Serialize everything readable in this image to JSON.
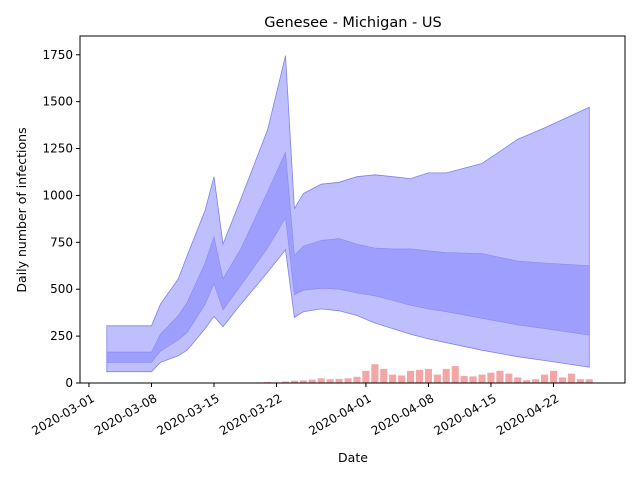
{
  "chart_data": {
    "type": "area",
    "title": "Genesee - Michigan - US",
    "xlabel": "Date",
    "ylabel": "Daily number of infections",
    "xlim": [
      "2020-02-29",
      "2020-04-30"
    ],
    "ylim": [
      0,
      1850
    ],
    "grid": false,
    "colors": {
      "outer_band": "#bfbfff",
      "inner_band": "#9999ff",
      "band_edge": "#8080ee",
      "bars": "#f4a6a6"
    },
    "x_ticks": [
      "2020-03-01",
      "2020-03-08",
      "2020-03-15",
      "2020-03-22",
      "2020-04-01",
      "2020-04-08",
      "2020-04-15",
      "2020-04-22"
    ],
    "y_ticks": [
      0,
      250,
      500,
      750,
      1000,
      1250,
      1500,
      1750
    ],
    "bands": {
      "dates": [
        "2020-03-03",
        "2020-03-08",
        "2020-03-09",
        "2020-03-11",
        "2020-03-12",
        "2020-03-14",
        "2020-03-15",
        "2020-03-16",
        "2020-03-18",
        "2020-03-21",
        "2020-03-23",
        "2020-03-24",
        "2020-03-25",
        "2020-03-27",
        "2020-03-29",
        "2020-03-31",
        "2020-04-02",
        "2020-04-04",
        "2020-04-06",
        "2020-04-08",
        "2020-04-10",
        "2020-04-14",
        "2020-04-18",
        "2020-04-21",
        "2020-04-26"
      ],
      "outer_upper": [
        305,
        305,
        420,
        555,
        680,
        920,
        1100,
        740,
        980,
        1350,
        1745,
        930,
        1010,
        1060,
        1070,
        1100,
        1110,
        1100,
        1090,
        1120,
        1120,
        1170,
        1300,
        1360,
        1470
      ],
      "inner_upper": [
        165,
        165,
        260,
        360,
        430,
        640,
        780,
        555,
        715,
        1020,
        1230,
        680,
        730,
        760,
        770,
        740,
        720,
        715,
        715,
        705,
        695,
        690,
        650,
        640,
        625
      ],
      "inner_lower": [
        110,
        110,
        170,
        230,
        270,
        420,
        530,
        390,
        520,
        720,
        880,
        470,
        495,
        505,
        500,
        480,
        465,
        440,
        415,
        395,
        380,
        345,
        310,
        290,
        255
      ],
      "outer_lower": [
        60,
        60,
        110,
        145,
        175,
        290,
        355,
        300,
        420,
        590,
        710,
        350,
        380,
        395,
        385,
        360,
        320,
        290,
        260,
        235,
        215,
        175,
        140,
        120,
        85
      ]
    },
    "bars": {
      "dates": [
        "2020-03-19",
        "2020-03-20",
        "2020-03-21",
        "2020-03-22",
        "2020-03-23",
        "2020-03-24",
        "2020-03-25",
        "2020-03-26",
        "2020-03-27",
        "2020-03-28",
        "2020-03-29",
        "2020-03-30",
        "2020-03-31",
        "2020-04-01",
        "2020-04-02",
        "2020-04-03",
        "2020-04-04",
        "2020-04-05",
        "2020-04-06",
        "2020-04-07",
        "2020-04-08",
        "2020-04-09",
        "2020-04-10",
        "2020-04-11",
        "2020-04-12",
        "2020-04-13",
        "2020-04-14",
        "2020-04-15",
        "2020-04-16",
        "2020-04-17",
        "2020-04-18",
        "2020-04-19",
        "2020-04-20",
        "2020-04-21",
        "2020-04-22",
        "2020-04-23",
        "2020-04-24",
        "2020-04-25",
        "2020-04-26"
      ],
      "values": [
        2,
        3,
        5,
        3,
        8,
        12,
        14,
        18,
        25,
        20,
        22,
        25,
        33,
        65,
        100,
        75,
        45,
        40,
        65,
        70,
        75,
        45,
        75,
        90,
        38,
        35,
        45,
        55,
        65,
        50,
        30,
        15,
        20,
        45,
        65,
        30,
        50,
        20,
        20
      ]
    }
  }
}
